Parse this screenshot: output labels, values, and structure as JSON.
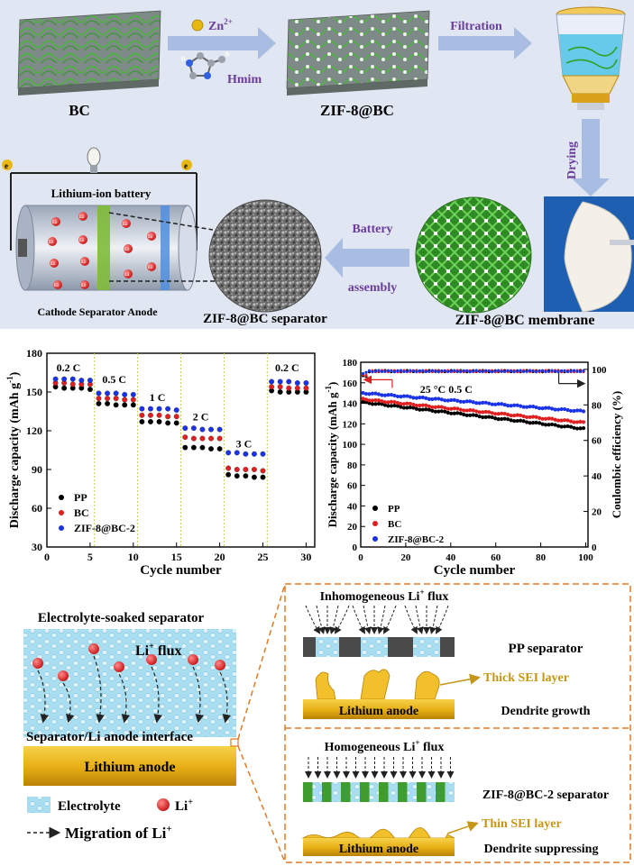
{
  "top": {
    "bc_label": "BC",
    "zn_label": "Zn",
    "zn_sup": "2+",
    "hmim_label": "Hmim",
    "zif_bc_label": "ZIF-8@BC",
    "filtration_label": "Filtration",
    "drying_label": "Drying",
    "battery_title": "Lithium-ion battery",
    "battery_parts_label": "Cathode Separator Anode",
    "electron_label": "e",
    "li_ion_label": "Li",
    "battery_assembly_1": "Battery",
    "battery_assembly_2": "assembly",
    "separator_label": "ZIF-8@BC separator",
    "membrane_label": "ZIF-8@BC membrane"
  },
  "colors": {
    "top_panel_bg": "#e1e6f3",
    "arrow_fill": "#a9bde3",
    "process_label": "#6a3d9a",
    "bc_green": "#3f9c2f",
    "lithium_gold": "#e6ad14",
    "sei_yellow": "#f2c02a",
    "sei_label": "#c59616",
    "series_pp": "#000000",
    "series_bc": "#e02020",
    "series_zif": "#1a33e8",
    "dashed_box": "#e07a24"
  },
  "chart_data": [
    {
      "type": "scatter",
      "xlabel": "Cycle number",
      "ylabel": "Discharge capacity (mAh g",
      "ylabel_sup": "-1",
      "ylabel_close": ")",
      "xlim": [
        0,
        31
      ],
      "ylim": [
        30,
        180
      ],
      "xticks": [
        "0",
        "5",
        "10",
        "15",
        "20",
        "25",
        "30"
      ],
      "yticks": [
        "30",
        "60",
        "90",
        "120",
        "150",
        "180"
      ],
      "rate_labels": [
        {
          "text": "0.2 C",
          "x": 2.5,
          "y": 166
        },
        {
          "text": "0.5 C",
          "x": 7.8,
          "y": 157
        },
        {
          "text": "1 C",
          "x": 12.8,
          "y": 143
        },
        {
          "text": "2 C",
          "x": 17.8,
          "y": 128
        },
        {
          "text": "3 C",
          "x": 22.8,
          "y": 107
        },
        {
          "text": "0.2 C",
          "x": 27.8,
          "y": 166
        }
      ],
      "rate_boundaries": [
        5.5,
        10.5,
        15.5,
        20.5,
        25.5
      ],
      "series": [
        {
          "name": "PP",
          "color": "#000000",
          "x": [
            1,
            2,
            3,
            4,
            5,
            6,
            7,
            8,
            9,
            10,
            11,
            12,
            13,
            14,
            15,
            16,
            17,
            18,
            19,
            20,
            21,
            22,
            23,
            24,
            25,
            26,
            27,
            28,
            29,
            30
          ],
          "values": [
            154,
            153,
            153,
            153,
            152,
            141,
            141,
            140,
            140,
            140,
            127,
            127,
            127,
            126,
            126,
            107,
            107,
            107,
            106,
            106,
            86,
            85,
            85,
            84,
            84,
            151,
            150,
            150,
            150,
            150
          ]
        },
        {
          "name": "BC",
          "color": "#e02020",
          "x": [
            1,
            2,
            3,
            4,
            5,
            6,
            7,
            8,
            9,
            10,
            11,
            12,
            13,
            14,
            15,
            16,
            17,
            18,
            19,
            20,
            21,
            22,
            23,
            24,
            25,
            26,
            27,
            28,
            29,
            30
          ],
          "values": [
            157,
            157,
            156,
            156,
            156,
            145,
            145,
            145,
            144,
            144,
            132,
            132,
            132,
            131,
            131,
            115,
            114,
            114,
            114,
            114,
            91,
            90,
            90,
            90,
            89,
            154,
            154,
            153,
            153,
            153
          ]
        },
        {
          "name": "ZIF-8@BC-2",
          "color": "#1a33e8",
          "x": [
            1,
            2,
            3,
            4,
            5,
            6,
            7,
            8,
            9,
            10,
            11,
            12,
            13,
            14,
            15,
            16,
            17,
            18,
            19,
            20,
            21,
            22,
            23,
            24,
            25,
            26,
            27,
            28,
            29,
            30
          ],
          "values": [
            160,
            160,
            160,
            159,
            159,
            149,
            149,
            149,
            148,
            148,
            137,
            137,
            137,
            137,
            136,
            122,
            122,
            121,
            121,
            121,
            103,
            103,
            102,
            102,
            102,
            158,
            158,
            158,
            157,
            157
          ]
        }
      ]
    },
    {
      "type": "line",
      "xlabel": "Cycle number",
      "ylabel": "Discharge capacity (mAh g",
      "ylabel_sup": "-1",
      "ylabel_close": ")",
      "y2label": "Coulombic efficiency (%)",
      "xlim": [
        0,
        101
      ],
      "ylim": [
        0,
        180
      ],
      "y2lim": [
        0,
        104
      ],
      "xticks": [
        "0",
        "20",
        "40",
        "60",
        "80",
        "100"
      ],
      "yticks": [
        "0",
        "20",
        "40",
        "60",
        "80",
        "100",
        "120",
        "140",
        "160",
        "180"
      ],
      "y2ticks": [
        "0",
        "20",
        "40",
        "60",
        "80",
        "100"
      ],
      "annotation": "25 °C  0.5 C",
      "series": [
        {
          "name": "PP",
          "color": "#000000",
          "start": 141,
          "end": 115
        },
        {
          "name": "BC",
          "color": "#e02020",
          "start": 144,
          "end": 121
        },
        {
          "name": "ZIF-8@BC-2",
          "color": "#1a33e8",
          "start": 150,
          "end": 132
        }
      ],
      "coulombic_efficiency": 99
    }
  ],
  "bottom": {
    "soaked_title": "Electrolyte-soaked separator",
    "li_flux": "Li",
    "li_flux_sup": "+",
    "li_flux_rest": " flux",
    "interface_label": "Separator/Li anode interface",
    "lithium_anode": "Lithium anode",
    "legend_electrolyte": "Electrolyte",
    "legend_li": "Li",
    "legend_li_sup": "+",
    "legend_migration": "Migration of Li",
    "legend_migration_sup": "+",
    "inhomogeneous": "Inhomogeneous Li",
    "inhomogeneous_sup": "+",
    "inhomogeneous_rest": " flux",
    "pp_separator": "PP separator",
    "thick_sei": "Thick SEI layer",
    "dendrite_growth": "Dendrite growth",
    "homogeneous": "Homogeneous Li",
    "homogeneous_sup": "+",
    "homogeneous_rest": " flux",
    "zif_separator": "ZIF-8@BC-2 separator",
    "thin_sei": "Thin SEI layer",
    "dendrite_suppressing": "Dendrite suppressing"
  }
}
